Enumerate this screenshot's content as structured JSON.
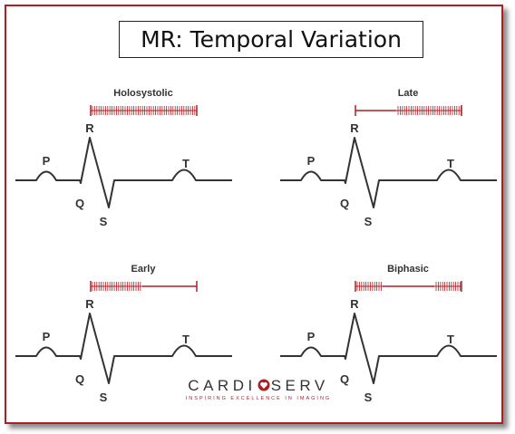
{
  "title": "MR: Temporal Variation",
  "colors": {
    "murmur": "#b01e23",
    "wave": "#333333",
    "frame": "#b01e23"
  },
  "panels": [
    {
      "id": "holosystolic",
      "label": "Holosystolic"
    },
    {
      "id": "late",
      "label": "Late"
    },
    {
      "id": "early",
      "label": "Early"
    },
    {
      "id": "biphasic",
      "label": "Biphasic"
    }
  ],
  "wave_labels": {
    "p": "P",
    "q": "Q",
    "r": "R",
    "s": "S",
    "t": "T"
  },
  "logo": {
    "left": "CARDI",
    "right": "SERV",
    "tagline": "INSPIRING EXCELLENCE IN IMAGING"
  }
}
